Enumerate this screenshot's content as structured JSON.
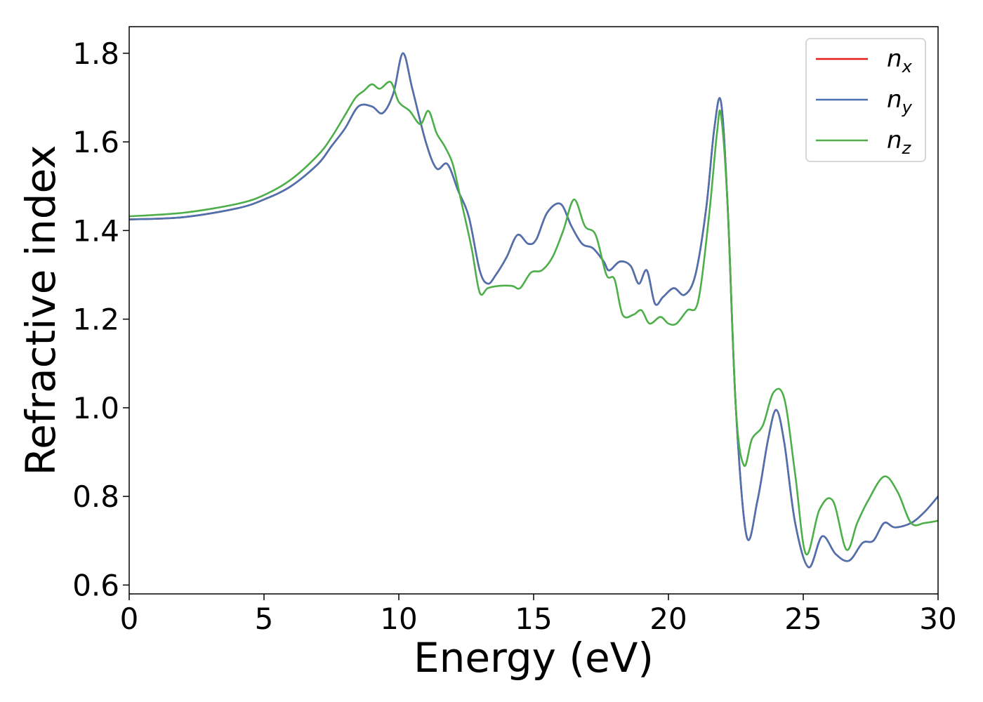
{
  "chart_data": {
    "type": "line",
    "title": "",
    "xlabel": "Energy (eV)",
    "ylabel": "Refractive index",
    "xlim": [
      0,
      30
    ],
    "ylim": [
      0.58,
      1.86
    ],
    "x_ticks": [
      0,
      5,
      10,
      15,
      20,
      25,
      30
    ],
    "y_ticks": [
      0.6,
      0.8,
      1.0,
      1.2,
      1.4,
      1.6,
      1.8
    ],
    "x_tick_labels": [
      "0",
      "5",
      "10",
      "15",
      "20",
      "25",
      "30"
    ],
    "y_tick_labels": [
      "0.6",
      "0.8",
      "1.0",
      "1.2",
      "1.4",
      "1.6",
      "1.8"
    ],
    "grid": false,
    "legend_position": "top-right",
    "series": [
      {
        "name": "n",
        "subscript": "x",
        "color": "#e41a1c",
        "x": [
          0,
          2,
          4,
          5,
          6,
          7,
          7.5,
          8,
          8.5,
          9,
          9.4,
          9.8,
          10.15,
          10.5,
          11,
          11.4,
          11.8,
          12.2,
          12.6,
          13,
          13.3,
          13.6,
          14,
          14.4,
          14.8,
          15.1,
          15.5,
          16,
          16.4,
          16.8,
          17.2,
          17.6,
          17.8,
          18.2,
          18.6,
          18.9,
          19.2,
          19.5,
          19.8,
          20.2,
          20.6,
          21,
          21.4,
          21.7,
          21.95,
          22.2,
          22.5,
          22.9,
          23.3,
          23.7,
          24.0,
          24.3,
          24.7,
          25.2,
          25.7,
          26.2,
          26.7,
          27.2,
          27.6,
          28,
          28.4,
          29,
          29.5,
          30
        ],
        "y": [
          1.425,
          1.43,
          1.45,
          1.47,
          1.5,
          1.55,
          1.59,
          1.63,
          1.68,
          1.68,
          1.665,
          1.71,
          1.8,
          1.72,
          1.6,
          1.54,
          1.55,
          1.49,
          1.43,
          1.31,
          1.28,
          1.3,
          1.34,
          1.39,
          1.37,
          1.38,
          1.44,
          1.46,
          1.41,
          1.37,
          1.36,
          1.33,
          1.31,
          1.33,
          1.32,
          1.28,
          1.31,
          1.235,
          1.25,
          1.27,
          1.255,
          1.3,
          1.45,
          1.63,
          1.69,
          1.45,
          1.0,
          0.71,
          0.79,
          0.93,
          0.995,
          0.92,
          0.74,
          0.64,
          0.71,
          0.67,
          0.655,
          0.695,
          0.7,
          0.74,
          0.73,
          0.74,
          0.765,
          0.8
        ]
      },
      {
        "name": "n",
        "subscript": "y",
        "color": "#4c72b0",
        "x": [
          0,
          2,
          4,
          5,
          6,
          7,
          7.5,
          8,
          8.5,
          9,
          9.4,
          9.8,
          10.15,
          10.5,
          11,
          11.4,
          11.8,
          12.2,
          12.6,
          13,
          13.3,
          13.6,
          14,
          14.4,
          14.8,
          15.1,
          15.5,
          16,
          16.4,
          16.8,
          17.2,
          17.6,
          17.8,
          18.2,
          18.6,
          18.9,
          19.2,
          19.5,
          19.8,
          20.2,
          20.6,
          21,
          21.4,
          21.7,
          21.95,
          22.2,
          22.5,
          22.9,
          23.3,
          23.7,
          24.0,
          24.3,
          24.7,
          25.2,
          25.7,
          26.2,
          26.7,
          27.2,
          27.6,
          28,
          28.4,
          29,
          29.5,
          30
        ],
        "y": [
          1.425,
          1.43,
          1.45,
          1.47,
          1.5,
          1.55,
          1.59,
          1.63,
          1.68,
          1.68,
          1.665,
          1.71,
          1.8,
          1.72,
          1.6,
          1.54,
          1.55,
          1.49,
          1.43,
          1.31,
          1.28,
          1.3,
          1.34,
          1.39,
          1.37,
          1.38,
          1.44,
          1.46,
          1.41,
          1.37,
          1.36,
          1.33,
          1.31,
          1.33,
          1.32,
          1.28,
          1.31,
          1.235,
          1.25,
          1.27,
          1.255,
          1.3,
          1.45,
          1.63,
          1.69,
          1.45,
          1.0,
          0.71,
          0.79,
          0.93,
          0.995,
          0.92,
          0.74,
          0.64,
          0.71,
          0.67,
          0.655,
          0.695,
          0.7,
          0.74,
          0.73,
          0.74,
          0.765,
          0.8
        ]
      },
      {
        "name": "n",
        "subscript": "z",
        "color": "#4daf4a",
        "x": [
          0,
          2,
          4,
          5,
          6,
          7,
          7.5,
          8,
          8.4,
          8.7,
          9.0,
          9.3,
          9.7,
          10,
          10.4,
          10.8,
          11.1,
          11.4,
          11.7,
          12.0,
          12.3,
          12.7,
          13.0,
          13.3,
          13.7,
          14.2,
          14.5,
          14.9,
          15.3,
          15.7,
          16.1,
          16.5,
          16.9,
          17.3,
          17.7,
          18.0,
          18.3,
          18.7,
          19.0,
          19.3,
          19.7,
          20.0,
          20.3,
          20.7,
          21.1,
          21.5,
          21.8,
          21.95,
          22.2,
          22.5,
          22.8,
          23.1,
          23.5,
          23.9,
          24.3,
          24.7,
          25.1,
          25.6,
          26.1,
          26.6,
          27.0,
          27.4,
          28.0,
          28.5,
          29.0,
          29.5,
          30
        ],
        "y": [
          1.432,
          1.44,
          1.46,
          1.48,
          1.515,
          1.57,
          1.61,
          1.66,
          1.7,
          1.715,
          1.73,
          1.72,
          1.735,
          1.69,
          1.67,
          1.64,
          1.67,
          1.62,
          1.59,
          1.55,
          1.47,
          1.36,
          1.26,
          1.27,
          1.275,
          1.275,
          1.27,
          1.305,
          1.31,
          1.34,
          1.4,
          1.47,
          1.41,
          1.39,
          1.3,
          1.29,
          1.21,
          1.21,
          1.22,
          1.19,
          1.205,
          1.19,
          1.19,
          1.22,
          1.24,
          1.43,
          1.62,
          1.66,
          1.45,
          1.0,
          0.87,
          0.93,
          0.96,
          1.035,
          1.02,
          0.85,
          0.67,
          0.77,
          0.79,
          0.68,
          0.74,
          0.79,
          0.845,
          0.81,
          0.74,
          0.74,
          0.745
        ]
      }
    ]
  }
}
